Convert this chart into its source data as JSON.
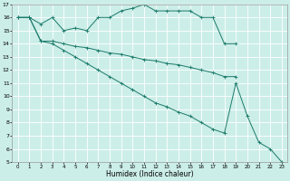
{
  "xlabel": "Humidex (Indice chaleur)",
  "bg_color": "#cceee8",
  "grid_color": "#ffffff",
  "line_color": "#1a7a6a",
  "xlim": [
    -0.5,
    23.5
  ],
  "ylim": [
    5,
    17
  ],
  "x_ticks": [
    0,
    1,
    2,
    3,
    4,
    5,
    6,
    7,
    8,
    9,
    10,
    11,
    12,
    13,
    14,
    15,
    16,
    17,
    18,
    19,
    20,
    21,
    22,
    23
  ],
  "y_ticks": [
    5,
    6,
    7,
    8,
    9,
    10,
    11,
    12,
    13,
    14,
    15,
    16,
    17
  ],
  "line1_x": [
    0,
    1,
    2,
    3,
    4,
    5,
    6,
    7,
    8,
    9,
    10,
    11,
    12,
    13,
    14,
    15,
    16,
    17,
    18,
    19
  ],
  "line1_y": [
    16,
    16,
    15.5,
    16,
    15,
    15.2,
    15,
    16,
    16,
    16.5,
    16.7,
    17,
    16.5,
    16.5,
    16.5,
    16.5,
    16,
    16,
    14,
    14
  ],
  "line2_x": [
    0,
    1,
    2,
    3,
    4,
    5,
    6,
    7,
    8,
    9,
    10,
    11,
    12,
    13,
    14,
    15,
    16,
    17,
    18,
    19
  ],
  "line2_y": [
    16,
    16,
    14.2,
    14.2,
    14,
    13.8,
    13.7,
    13.5,
    13.3,
    13.2,
    13.0,
    12.8,
    12.7,
    12.5,
    12.4,
    12.2,
    12.0,
    11.8,
    11.5,
    11.5
  ],
  "line3_x": [
    0,
    1,
    2,
    3,
    4,
    5,
    6,
    7,
    8,
    9,
    10,
    11,
    12,
    13,
    14,
    15,
    16,
    17,
    18,
    19,
    20,
    21,
    22,
    23
  ],
  "line3_y": [
    16,
    16,
    14.2,
    14,
    13.5,
    13.0,
    12.5,
    12.0,
    11.5,
    11.0,
    10.5,
    10.0,
    9.5,
    9.2,
    8.8,
    8.5,
    8.0,
    7.5,
    7.2,
    11,
    8.5,
    6.5,
    6,
    5
  ]
}
